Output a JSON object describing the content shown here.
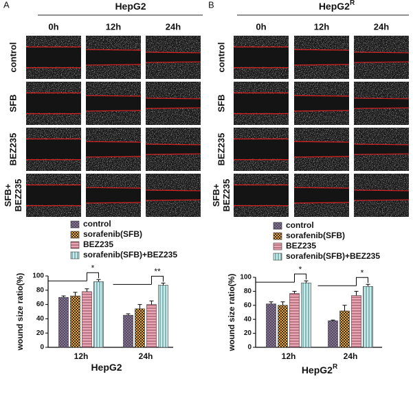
{
  "panels": [
    {
      "label": "A",
      "header": "HepG2",
      "columns": [
        "0h",
        "12h",
        "24h"
      ],
      "rows": [
        [
          "control"
        ],
        [
          "SFB"
        ],
        [
          "BEZ235"
        ],
        [
          "SFB+",
          "BEZ235"
        ]
      ]
    },
    {
      "label": "B",
      "header": "HepG2",
      "header_sup": "R",
      "columns": [
        "0h",
        "12h",
        "24h"
      ],
      "rows": [
        [
          "control"
        ],
        [
          "SFB"
        ],
        [
          "BEZ235"
        ],
        [
          "SFB+",
          "BEZ235"
        ]
      ]
    }
  ],
  "chart_data": [
    {
      "type": "bar",
      "title": "HepG2",
      "y_label": "wound size ratio(%)",
      "categories": [
        "12h",
        "24h"
      ],
      "series": [
        {
          "name": "control",
          "color": "#8e7f9c",
          "values": [
            70,
            45
          ],
          "errors": [
            2,
            2
          ]
        },
        {
          "name": "sorafenib(SFB)",
          "color": "#e6a84a",
          "values": [
            72,
            54
          ],
          "errors": [
            5,
            6
          ]
        },
        {
          "name": "BEZ235",
          "color": "#eba7b6",
          "values": [
            78,
            60
          ],
          "errors": [
            4,
            5
          ]
        },
        {
          "name": "sorafenib(SFB)+BEZ235",
          "color": "#c6eeee",
          "values": [
            92,
            87
          ],
          "errors": [
            3,
            3
          ]
        }
      ],
      "annotations": [
        "*",
        "**"
      ],
      "ylim": [
        0,
        100
      ],
      "yticks": [
        0,
        20,
        40,
        60,
        80,
        100
      ]
    },
    {
      "type": "bar",
      "title": "HepG2",
      "title_sup": "R",
      "y_label": "wound size ratio(%)",
      "categories": [
        "12h",
        "24h"
      ],
      "series": [
        {
          "name": "control",
          "color": "#8e7f9c",
          "values": [
            62,
            38
          ],
          "errors": [
            3,
            1
          ]
        },
        {
          "name": "sorafenib(SFB)",
          "color": "#e6a84a",
          "values": [
            60,
            52
          ],
          "errors": [
            5,
            8
          ]
        },
        {
          "name": "BEZ235",
          "color": "#eba7b6",
          "values": [
            77,
            74
          ],
          "errors": [
            3,
            6
          ]
        },
        {
          "name": "sorafenib(SFB)+BEZ235",
          "color": "#c6eeee",
          "values": [
            92,
            87
          ],
          "errors": [
            3,
            3
          ]
        }
      ],
      "annotations": [
        "*",
        "*"
      ],
      "ylim": [
        0,
        100
      ],
      "yticks": [
        0,
        20,
        40,
        60,
        80,
        100
      ]
    }
  ]
}
